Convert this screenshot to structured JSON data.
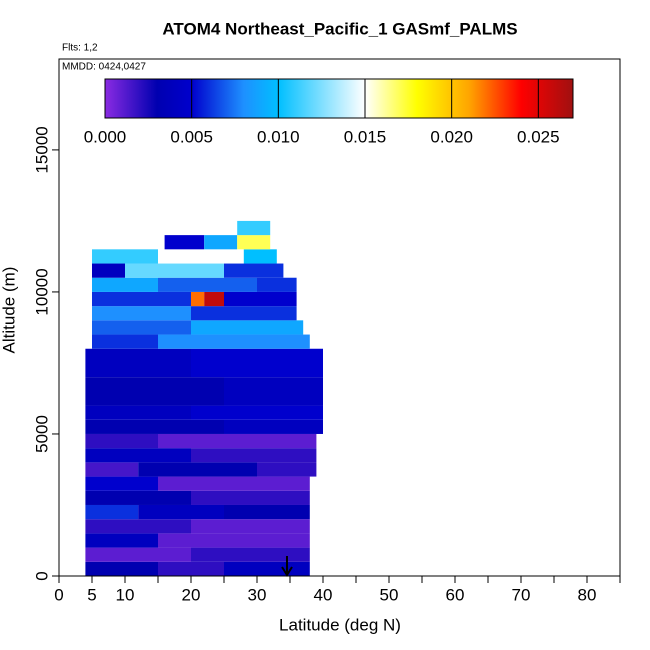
{
  "chart_data": {
    "type": "heatmap",
    "title": "ATOM4 Northeast_Pacific_1 GASmf_PALMS",
    "annotations": [
      "Flts: 1,2",
      "MMDD: 0424,0427"
    ],
    "x_label": "Latitude (deg N)",
    "y_label": "Altitude (m)",
    "xlim": [
      0,
      85
    ],
    "ylim": [
      0,
      18200
    ],
    "xticks": [
      0,
      5,
      10,
      20,
      30,
      40,
      50,
      60,
      70,
      80
    ],
    "xminorticks": [
      15,
      25,
      35,
      45,
      55,
      65,
      75,
      85
    ],
    "yticks": [
      0,
      5000,
      10000,
      15000
    ],
    "colorbar_lim": [
      0,
      0.027
    ],
    "colorbar_ticks": [
      {
        "value": 0,
        "label": "0.000"
      },
      {
        "value": 0.005,
        "label": "0.005"
      },
      {
        "value": 0.01,
        "label": "0.010"
      },
      {
        "value": 0.015,
        "label": "0.015"
      },
      {
        "value": 0.02,
        "label": "0.020"
      },
      {
        "value": 0.025,
        "label": "0.025"
      }
    ],
    "colorscale": [
      [
        0,
        "#8a2be2"
      ],
      [
        0.003,
        "#0000b0"
      ],
      [
        0.005,
        "#0000cd"
      ],
      [
        0.008,
        "#1e90ff"
      ],
      [
        0.01,
        "#00bfff"
      ],
      [
        0.015,
        "#ffffff"
      ],
      [
        0.018,
        "#ffff00"
      ],
      [
        0.021,
        "#ffa500"
      ],
      [
        0.024,
        "#ff0000"
      ],
      [
        0.027,
        "#a01010"
      ]
    ],
    "rows": [
      {
        "alt": [
          0,
          500
        ],
        "segments": [
          [
            4,
            15,
            0.003
          ],
          [
            15,
            25,
            0.002
          ],
          [
            25,
            38,
            0.004
          ]
        ]
      },
      {
        "alt": [
          500,
          1000
        ],
        "segments": [
          [
            4,
            20,
            0.001
          ],
          [
            20,
            38,
            0.002
          ]
        ]
      },
      {
        "alt": [
          1000,
          1500
        ],
        "segments": [
          [
            4,
            15,
            0.004
          ],
          [
            15,
            38,
            0.001
          ]
        ]
      },
      {
        "alt": [
          1500,
          2000
        ],
        "segments": [
          [
            4,
            20,
            0.002
          ],
          [
            20,
            38,
            0.001
          ]
        ]
      },
      {
        "alt": [
          2000,
          2500
        ],
        "segments": [
          [
            4,
            12,
            0.006
          ],
          [
            12,
            25,
            0.004
          ],
          [
            25,
            38,
            0.003
          ]
        ]
      },
      {
        "alt": [
          2500,
          3000
        ],
        "segments": [
          [
            4,
            20,
            0.003
          ],
          [
            20,
            38,
            0.002
          ]
        ]
      },
      {
        "alt": [
          3000,
          3500
        ],
        "segments": [
          [
            4,
            15,
            0.005
          ],
          [
            15,
            38,
            0.001
          ]
        ]
      },
      {
        "alt": [
          3500,
          4000
        ],
        "segments": [
          [
            4,
            12,
            0.0015
          ],
          [
            12,
            30,
            0.003
          ],
          [
            30,
            39,
            0.002
          ]
        ]
      },
      {
        "alt": [
          4000,
          4500
        ],
        "segments": [
          [
            4,
            20,
            0.004
          ],
          [
            20,
            39,
            0.002
          ]
        ]
      },
      {
        "alt": [
          4500,
          5000
        ],
        "segments": [
          [
            4,
            15,
            0.002
          ],
          [
            15,
            39,
            0.001
          ]
        ]
      },
      {
        "alt": [
          5000,
          5500
        ],
        "segments": [
          [
            4,
            25,
            0.003
          ],
          [
            25,
            40,
            0.004
          ]
        ]
      },
      {
        "alt": [
          5500,
          6000
        ],
        "segments": [
          [
            4,
            20,
            0.004
          ],
          [
            20,
            40,
            0.005
          ]
        ]
      },
      {
        "alt": [
          6000,
          7000
        ],
        "segments": [
          [
            4,
            25,
            0.003
          ],
          [
            25,
            40,
            0.004
          ]
        ]
      },
      {
        "alt": [
          7000,
          8000
        ],
        "segments": [
          [
            4,
            20,
            0.004
          ],
          [
            20,
            40,
            0.005
          ]
        ]
      },
      {
        "alt": [
          8000,
          8500
        ],
        "segments": [
          [
            5,
            15,
            0.006
          ],
          [
            15,
            38,
            0.008
          ]
        ]
      },
      {
        "alt": [
          8500,
          9000
        ],
        "segments": [
          [
            5,
            20,
            0.007
          ],
          [
            20,
            37,
            0.009
          ]
        ]
      },
      {
        "alt": [
          9000,
          9500
        ],
        "segments": [
          [
            5,
            20,
            0.008
          ],
          [
            20,
            36,
            0.006
          ]
        ]
      },
      {
        "alt": [
          9500,
          10000
        ],
        "segments": [
          [
            5,
            20,
            0.006
          ],
          [
            20,
            22,
            0.022
          ],
          [
            22,
            25,
            0.026
          ],
          [
            25,
            36,
            0.005
          ]
        ]
      },
      {
        "alt": [
          10000,
          10500
        ],
        "segments": [
          [
            5,
            15,
            0.009
          ],
          [
            15,
            30,
            0.007
          ],
          [
            30,
            36,
            0.006
          ]
        ]
      },
      {
        "alt": [
          10500,
          11000
        ],
        "segments": [
          [
            5,
            10,
            0.004
          ],
          [
            10,
            25,
            0.012
          ],
          [
            25,
            34,
            0.006
          ]
        ]
      },
      {
        "alt": [
          11000,
          11500
        ],
        "segments": [
          [
            5,
            15,
            0.011
          ],
          [
            15,
            28,
            0.015
          ],
          [
            28,
            33,
            0.01
          ]
        ]
      },
      {
        "alt": [
          11500,
          12000
        ],
        "segments": [
          [
            16,
            22,
            0.005
          ],
          [
            22,
            27,
            0.009
          ],
          [
            27,
            32,
            0.017
          ]
        ]
      },
      {
        "alt": [
          12000,
          12500
        ],
        "segments": [
          [
            27,
            32,
            0.011
          ]
        ]
      }
    ]
  }
}
